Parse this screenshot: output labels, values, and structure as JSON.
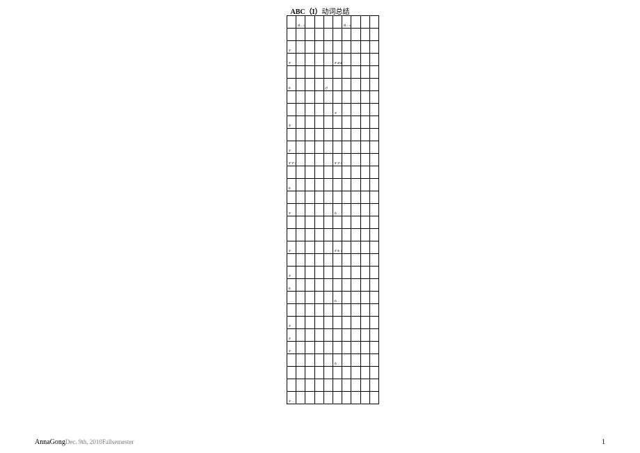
{
  "title_prefix": "ABC",
  "title_mid": "（I）",
  "title_suffix": "动词总结",
  "footer_name": "AnnaGong",
  "footer_date": "Dec. 9th, 2010Fallsemester",
  "page_number": "1",
  "table": {
    "columns": 10,
    "rows": [
      [
        "",
        "月 — 火 — —",
        "",
        "",
        "",
        "",
        "月 — 火 — —",
        "",
        "",
        ""
      ],
      [
        "",
        "",
        "",
        "",
        "",
        "",
        "",
        "",
        "",
        ""
      ],
      [
        "す",
        "",
        "",
        "",
        "",
        "",
        "",
        "",
        "",
        ""
      ],
      [
        "す",
        "",
        "",
        "",
        "",
        "す め め め め",
        "",
        "",
        "",
        ""
      ],
      [
        "",
        "",
        "",
        "",
        "",
        "",
        "",
        "",
        "",
        ""
      ],
      [
        "も",
        "",
        "",
        "",
        "刃",
        "",
        "",
        "",
        "",
        ""
      ],
      [
        "",
        "",
        "",
        "",
        "",
        "",
        "",
        "",
        "",
        ""
      ],
      [
        "",
        "",
        "",
        "",
        "",
        "す",
        "",
        "",
        "",
        ""
      ],
      [
        "王",
        "",
        "",
        "",
        "",
        "",
        "",
        "",
        "",
        ""
      ],
      [
        "",
        "",
        "",
        "",
        "",
        "",
        "",
        "",
        "",
        ""
      ],
      [
        "す",
        "",
        "",
        "",
        "",
        "",
        "",
        "",
        "",
        ""
      ],
      [
        "す す す す す",
        "",
        "",
        "",
        "",
        "す す す す す",
        "",
        "",
        "",
        ""
      ],
      [
        "",
        "",
        "",
        "",
        "",
        "",
        "",
        "",
        "",
        ""
      ],
      [
        "も",
        "",
        "",
        "",
        "",
        "",
        "",
        "",
        "",
        ""
      ],
      [
        "",
        "",
        "",
        "",
        "",
        "",
        "",
        "",
        "",
        ""
      ],
      [
        "す",
        "",
        "",
        "",
        "",
        "も . . . .",
        "",
        "",
        "",
        ""
      ],
      [
        "",
        "",
        "",
        "",
        "",
        "",
        "",
        "",
        "",
        ""
      ],
      [
        "",
        "",
        "",
        "",
        "",
        "",
        "",
        "",
        "",
        ""
      ],
      [
        "す",
        "",
        "",
        "",
        "",
        "す も す も",
        "",
        "",
        "",
        ""
      ],
      [
        "",
        "",
        "",
        "",
        "",
        "",
        "",
        "",
        "",
        ""
      ],
      [
        "す",
        "",
        "",
        "",
        "",
        "",
        "",
        "",
        "",
        ""
      ],
      [
        "も",
        "",
        "",
        "",
        "",
        "",
        "",
        "",
        "",
        ""
      ],
      [
        ". . . . . .",
        "",
        "",
        "",
        "",
        "も . . . . .",
        "",
        "",
        "",
        ""
      ],
      [
        "",
        "",
        "",
        "",
        "",
        "",
        "",
        "",
        "",
        ""
      ],
      [
        "す",
        "",
        "",
        "",
        "",
        "",
        "",
        "",
        "",
        ""
      ],
      [
        "す",
        "",
        "",
        "",
        "",
        "",
        "",
        "",
        "",
        ""
      ],
      [
        "す",
        "",
        "",
        "",
        "",
        "",
        "",
        "",
        "",
        ""
      ],
      [
        "",
        "",
        "",
        "",
        "",
        "も . . .",
        "",
        "",
        "",
        ""
      ],
      [
        "",
        "",
        "",
        "",
        "",
        "",
        "",
        "",
        "",
        ""
      ],
      [
        "",
        "",
        "",
        "",
        "",
        "",
        "",
        "",
        "",
        ""
      ],
      [
        "す . . . . .",
        "",
        "",
        "",
        "",
        "",
        "",
        "",
        "",
        ""
      ]
    ]
  }
}
